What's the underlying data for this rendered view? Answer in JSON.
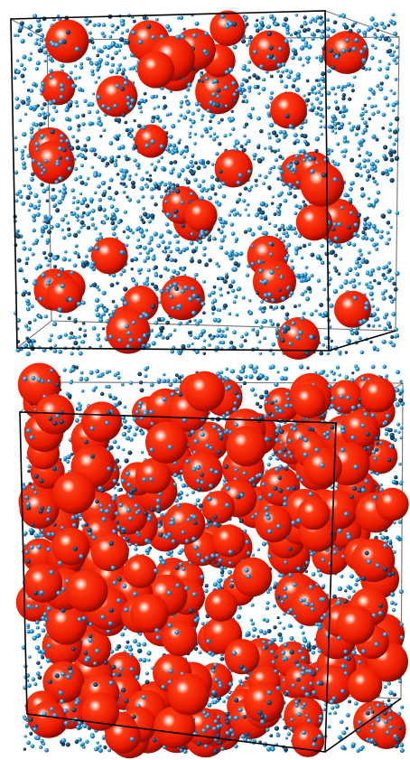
{
  "figure": {
    "panels": [
      {
        "id": "dilute",
        "large_sphere_count": 40,
        "small_particle_count": 2600
      },
      {
        "id": "dense",
        "large_sphere_count": 210,
        "small_particle_count": 2600
      }
    ],
    "colors": {
      "background": "#ffffff",
      "box_edge": "#000000",
      "large_sphere": "#ff2a00",
      "large_sphere_shadow": "#7a0800",
      "large_sphere_highlight": "#ffffff",
      "small_particle": "#2aa8e6",
      "small_particle_dark": "#0f3e6b",
      "small_particle_highlight": "#d8f2ff"
    }
  }
}
